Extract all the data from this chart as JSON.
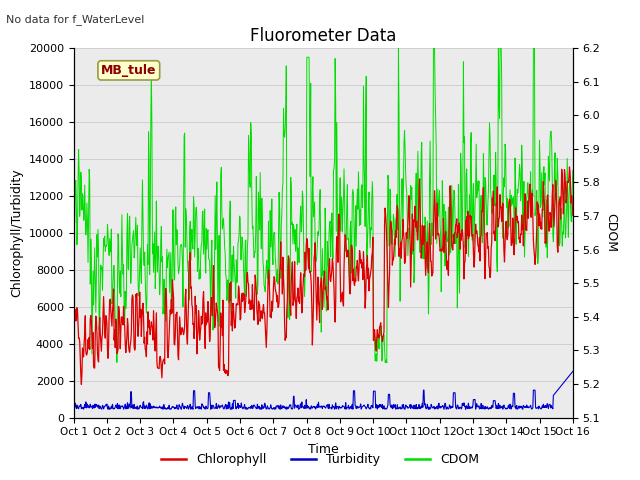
{
  "title": "Fluorometer Data",
  "subtitle": "No data for f_WaterLevel",
  "xlabel": "Time",
  "ylabel_left": "Chlorophyll/Turbidity",
  "ylabel_right": "CDOM",
  "annotation": "MB_tule",
  "x_tick_labels": [
    "Oct 1",
    "Oct 2",
    "Oct 3",
    "Oct 4",
    "Oct 5",
    "Oct 6",
    "Oct 7",
    "Oct 8",
    "Oct 9",
    "Oct 10",
    "Oct 11",
    "Oct 12",
    "Oct 13",
    "Oct 14",
    "Oct 15",
    "Oct 16"
  ],
  "ylim_left": [
    0,
    20000
  ],
  "ylim_right": [
    5.1,
    6.2
  ],
  "yticks_left": [
    0,
    2000,
    4000,
    6000,
    8000,
    10000,
    12000,
    14000,
    16000,
    18000,
    20000
  ],
  "yticks_right": [
    5.1,
    5.2,
    5.3,
    5.4,
    5.5,
    5.6,
    5.7,
    5.8,
    5.9,
    6.0,
    6.1,
    6.2
  ],
  "fig_bg_color": "#ffffff",
  "plot_bg_color": "#ebebeb",
  "chlorophyll_color": "#dd0000",
  "turbidity_color": "#0000cc",
  "cdom_color": "#00dd00",
  "legend_labels": [
    "Chlorophyll",
    "Turbidity",
    "CDOM"
  ],
  "n_points": 900,
  "seed": 42
}
